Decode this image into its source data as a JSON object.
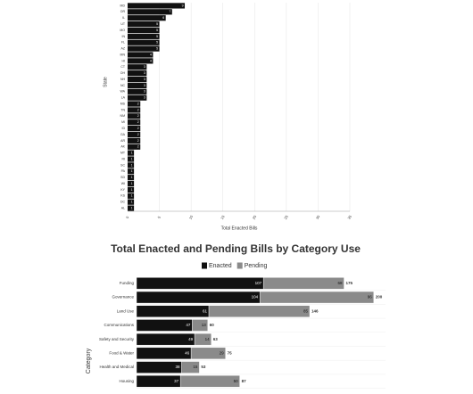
{
  "chart_data": [
    {
      "type": "hbar",
      "title": "Total Enacted Bills",
      "y_label": "State",
      "color": "#111111",
      "grid": true,
      "categories": [
        "MD",
        "OR",
        "IL",
        "UT",
        "MO",
        "IN",
        "FL",
        "AZ",
        "MN",
        "HI",
        "CT",
        "OH",
        "NH",
        "NC",
        "WA",
        "LA",
        "MS",
        "TN",
        "NM",
        "MI",
        "ID",
        "GA",
        "AR",
        "AK",
        "MT",
        "RI",
        "SC",
        "PA",
        "SD",
        "WI",
        "KY",
        "KS",
        "DC",
        "AL"
      ],
      "values": [
        9,
        7,
        6,
        5,
        5,
        5,
        5,
        5,
        4,
        4,
        3,
        3,
        3,
        3,
        3,
        3,
        2,
        2,
        2,
        2,
        2,
        2,
        2,
        2,
        1,
        1,
        1,
        1,
        1,
        1,
        1,
        1,
        1,
        1
      ],
      "xlim": [
        0,
        35
      ],
      "xticks": [
        0,
        5,
        10,
        15,
        20,
        25,
        30,
        35
      ]
    },
    {
      "type": "stacked-hbar",
      "title": "Total Enacted and Pending Bills by Category Use",
      "y_label": "Category",
      "categories": [
        "Funding",
        "Governance",
        "Land Use",
        "Communications",
        "Safety and Security",
        "Food & Water",
        "Health and Medical",
        "Housing"
      ],
      "series": [
        {
          "name": "Enacted",
          "color": "#111111",
          "values": [
            107,
            104,
            61,
            47,
            49,
            46,
            38,
            37
          ]
        },
        {
          "name": "Pending",
          "color": "#8a8a8a",
          "values": [
            68,
            96,
            85,
            13,
            14,
            29,
            15,
            50
          ]
        }
      ],
      "totals": [
        175,
        200,
        146,
        60,
        63,
        75,
        53,
        87
      ],
      "xlim": [
        0,
        210
      ]
    }
  ]
}
